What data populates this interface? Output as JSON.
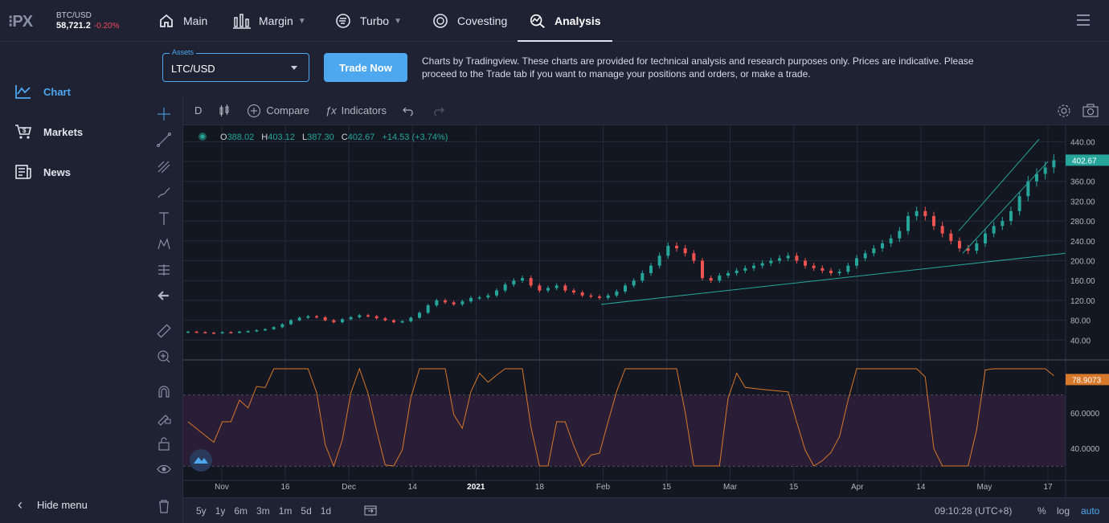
{
  "ticker": {
    "symbol": "BTC/USD",
    "price": "58,721.2",
    "change": "-0.20%"
  },
  "nav": {
    "items": [
      {
        "label": "Main"
      },
      {
        "label": "Margin"
      },
      {
        "label": "Turbo"
      },
      {
        "label": "Covesting"
      },
      {
        "label": "Analysis"
      }
    ]
  },
  "sidebar": {
    "items": [
      {
        "label": "Chart"
      },
      {
        "label": "Markets"
      },
      {
        "label": "News"
      }
    ],
    "hide": "Hide menu"
  },
  "controls": {
    "assets_label": "Assets",
    "asset": "LTC/USD",
    "trade": "Trade Now",
    "disclaimer": "Charts by Tradingview. These charts are provided for technical analysis and research purposes only. Prices are indicative. Please proceed to the Trade tab if you want to manage your positions and orders, or make a trade."
  },
  "toolbar": {
    "interval": "D",
    "compare": "Compare",
    "indicators": "Indicators"
  },
  "ohlc": {
    "o_label": "O",
    "o": "388.02",
    "h_label": "H",
    "h": "403.12",
    "l_label": "L",
    "l": "387.30",
    "c_label": "C",
    "c": "402.67",
    "chg": "+14.53 (+3.74%)"
  },
  "bottom": {
    "ranges": [
      "5y",
      "1y",
      "6m",
      "3m",
      "1m",
      "5d",
      "1d"
    ],
    "time": "09:10:28 (UTC+8)",
    "pct": "%",
    "log": "log",
    "auto": "auto"
  },
  "colors": {
    "up": "#26a69a",
    "down": "#ef5350",
    "accent": "#4ea8f0",
    "rsi": "#d8782a"
  },
  "chart_data": {
    "type": "candlestick",
    "symbol": "LTC/USD",
    "interval": "D",
    "price_axis": {
      "ticks": [
        "440.00",
        "400.00",
        "360.00",
        "320.00",
        "280.00",
        "240.00",
        "200.00",
        "160.00",
        "120.00",
        "80.00",
        "40.00"
      ],
      "last": "402.67",
      "range": [
        0,
        460
      ]
    },
    "time_axis": {
      "ticks": [
        "Nov",
        "16",
        "Dec",
        "14",
        "2021",
        "18",
        "Feb",
        "15",
        "Mar",
        "15",
        "Apr",
        "14",
        "May",
        "17"
      ]
    },
    "close_series": [
      57,
      56,
      55,
      54,
      56,
      55,
      57,
      58,
      60,
      62,
      66,
      72,
      80,
      85,
      88,
      86,
      80,
      76,
      82,
      86,
      90,
      88,
      84,
      80,
      76,
      78,
      85,
      95,
      110,
      120,
      116,
      112,
      118,
      125,
      126,
      130,
      140,
      152,
      160,
      165,
      150,
      140,
      145,
      150,
      140,
      136,
      130,
      128,
      125,
      130,
      138,
      150,
      160,
      175,
      190,
      210,
      230,
      225,
      215,
      200,
      165,
      160,
      170,
      175,
      180,
      185,
      190,
      195,
      200,
      205,
      210,
      200,
      190,
      185,
      180,
      175,
      178,
      190,
      205,
      215,
      225,
      235,
      245,
      260,
      290,
      300,
      290,
      270,
      255,
      240,
      225,
      220,
      235,
      255,
      270,
      280,
      300,
      330,
      360,
      375,
      388,
      402.67
    ],
    "rsi": {
      "name": "RSI",
      "ticks": [
        "60.0000",
        "40.0000"
      ],
      "last": "78.9073",
      "range": [
        20,
        90
      ]
    }
  }
}
